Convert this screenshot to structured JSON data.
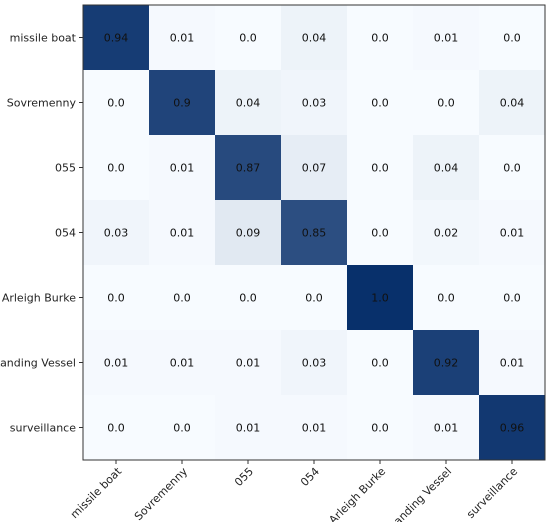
{
  "chart_data": {
    "type": "heatmap",
    "title": "",
    "xlabel": "",
    "ylabel": "",
    "x_categories": [
      "missile boat",
      "Sovremenny",
      "055",
      "054",
      "Arleigh Burke",
      "Landing Vessel",
      "surveillance"
    ],
    "y_categories": [
      "missile boat",
      "Sovremenny",
      "055",
      "054",
      "Arleigh Burke",
      "Landing Vessel",
      "surveillance"
    ],
    "values": [
      [
        0.94,
        0.01,
        0.0,
        0.04,
        0.0,
        0.01,
        0.0
      ],
      [
        0.0,
        0.9,
        0.04,
        0.03,
        0.0,
        0.0,
        0.04
      ],
      [
        0.0,
        0.01,
        0.87,
        0.07,
        0.0,
        0.04,
        0.0
      ],
      [
        0.03,
        0.01,
        0.09,
        0.85,
        0.0,
        0.02,
        0.01
      ],
      [
        0.0,
        0.0,
        0.0,
        0.0,
        1.0,
        0.0,
        0.0
      ],
      [
        0.01,
        0.01,
        0.01,
        0.03,
        0.0,
        0.92,
        0.01
      ],
      [
        0.0,
        0.0,
        0.01,
        0.01,
        0.0,
        0.01,
        0.96
      ]
    ],
    "value_labels": [
      [
        "0.94",
        "0.01",
        "0.0",
        "0.04",
        "0.0",
        "0.01",
        "0.0"
      ],
      [
        "0.0",
        "0.9",
        "0.04",
        "0.03",
        "0.0",
        "0.0",
        "0.04"
      ],
      [
        "0.0",
        "0.01",
        "0.87",
        "0.07",
        "0.0",
        "0.04",
        "0.0"
      ],
      [
        "0.03",
        "0.01",
        "0.09",
        "0.85",
        "0.0",
        "0.02",
        "0.01"
      ],
      [
        "0.0",
        "0.0",
        "0.0",
        "0.0",
        "1.0",
        "0.0",
        "0.0"
      ],
      [
        "0.01",
        "0.01",
        "0.01",
        "0.03",
        "0.0",
        "0.92",
        "0.01"
      ],
      [
        "0.0",
        "0.0",
        "0.01",
        "0.01",
        "0.0",
        "0.01",
        "0.96"
      ]
    ],
    "colormap": {
      "low": "#f7fbff",
      "high": "#08306b"
    },
    "vmin": 0,
    "vmax": 1,
    "grid": false,
    "legend": "none"
  }
}
